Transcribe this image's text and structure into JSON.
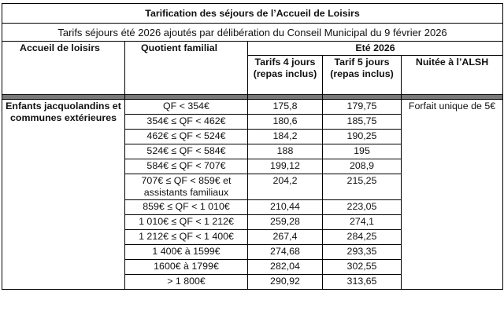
{
  "title": "Tarification des séjours de l’Accueil de Loisirs",
  "subtitle": "Tarifs séjours été 2026 ajoutés par délibération du Conseil Municipal du 9 février 2026",
  "headers": {
    "accueil": "Accueil de loisirs",
    "quotient": "Quotient familial",
    "season": "Eté 2026",
    "tarif4": "Tarifs 4 jours (repas inclus)",
    "tarif5": "Tarif 5 jours (repas inclus)",
    "nuitee": "Nuitée à l’ALSH"
  },
  "group_label": "Enfants jacquolandins et communes extérieures",
  "nuitee_value": "Forfait unique de 5€",
  "rows": [
    {
      "qf": "QF < 354€",
      "t4": "175,8",
      "t5": "179,75"
    },
    {
      "qf": "354€ ≤ QF < 462€",
      "t4": "180,6",
      "t5": "185,75"
    },
    {
      "qf": "462€ ≤ QF < 524€",
      "t4": "184,2",
      "t5": "190,25"
    },
    {
      "qf": "524€ ≤ QF < 584€",
      "t4": "188",
      "t5": "195"
    },
    {
      "qf": "584€ ≤ QF < 707€",
      "t4": "199,12",
      "t5": "208,9"
    },
    {
      "qf": "707€ ≤ QF < 859€ et assistants familiaux",
      "t4": "204,2",
      "t5": "215,25"
    },
    {
      "qf": "859€ ≤ QF < 1 010€",
      "t4": "210,44",
      "t5": "223,05"
    },
    {
      "qf": "1 010€ ≤ QF < 1 212€",
      "t4": "259,28",
      "t5": "274,1"
    },
    {
      "qf": "1 212€ ≤ QF < 1 400€",
      "t4": "267,4",
      "t5": "284,25"
    },
    {
      "qf": "1 400€ à 1599€",
      "t4": "274,68",
      "t5": "293,35"
    },
    {
      "qf": "1600€ à 1799€",
      "t4": "282,04",
      "t5": "302,55"
    },
    {
      "qf": "> 1 800€",
      "t4": "290,92",
      "t5": "313,65"
    }
  ]
}
